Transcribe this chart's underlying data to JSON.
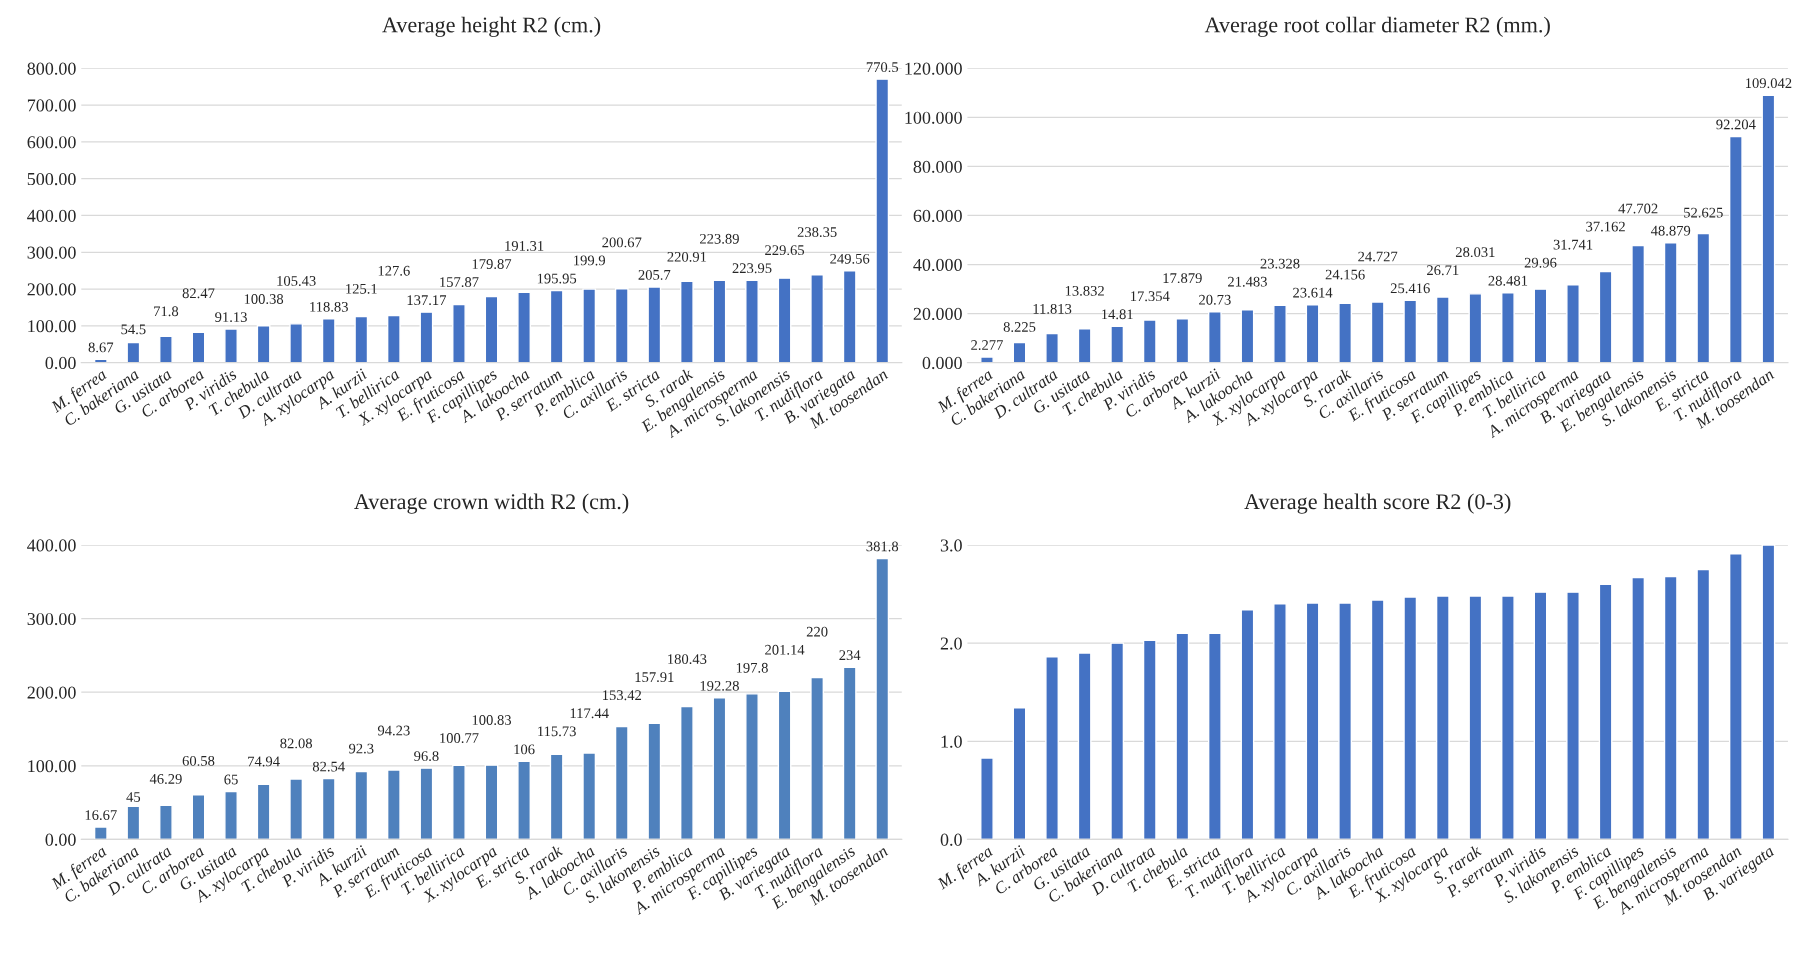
{
  "chart_data": [
    {
      "type": "bar",
      "title": "Average height R2 (cm.)",
      "color": "#4472c4",
      "data_labels": true,
      "grid": "y",
      "categories": [
        "M. ferrea",
        "C. bakeriana",
        "G. usitata",
        "C. arborea",
        "P. viridis",
        "T. chebula",
        "D. cultrata",
        "A. xylocarpa",
        "A. kurzii",
        "T. bellirica",
        "X. xylocarpa",
        "E. fruticosa",
        "F. capillipes",
        "A. lakoocha",
        "P. serratum",
        "P. emblica",
        "C. axillaris",
        "E. stricta",
        "S. rarak",
        "E. bengalensis",
        "A. microsperma",
        "S. lakonensis",
        "T. nudiflora",
        "B. variegata",
        "M. toosendan"
      ],
      "values": [
        8.67,
        54.5,
        71.8,
        82.47,
        91.13,
        100.38,
        105.43,
        118.83,
        125.1,
        127.6,
        137.17,
        157.87,
        179.87,
        191.31,
        195.95,
        199.9,
        200.67,
        205.7,
        220.91,
        223.89,
        223.95,
        229.65,
        238.35,
        249.56,
        770.5
      ],
      "ylim": [
        0,
        800
      ],
      "yticks": [
        {
          "value": 0,
          "label": "0.00"
        },
        {
          "value": 100,
          "label": "100.00"
        },
        {
          "value": 200,
          "label": "200.00"
        },
        {
          "value": 300,
          "label": "300.00"
        },
        {
          "value": 400,
          "label": "400.00"
        },
        {
          "value": 500,
          "label": "500.00"
        },
        {
          "value": 600,
          "label": "600.00"
        },
        {
          "value": 700,
          "label": "700.00"
        },
        {
          "value": 800,
          "label": "800.00"
        }
      ]
    },
    {
      "type": "bar",
      "title": "Average root collar diameter R2 (mm.)",
      "color": "#4472c4",
      "data_labels": true,
      "grid": "y",
      "categories": [
        "M. ferrea",
        "C. bakeriana",
        "D. cultrata",
        "G. usitata",
        "T. chebula",
        "P. viridis",
        "C. arborea",
        "A. kurzii",
        "A. lakoocha",
        "X. xylocarpa",
        "A. xylocarpa",
        "S. rarak",
        "C. axillaris",
        "E. fruticosa",
        "P. serratum",
        "F. capillipes",
        "P. emblica",
        "T. bellirica",
        "A. microsperma",
        "B. variegata",
        "E. bengalensis",
        "S. lakonensis",
        "E. stricta",
        "T. nudiflora",
        "M. toosendan"
      ],
      "values": [
        2.277,
        8.225,
        11.813,
        13.832,
        14.81,
        17.354,
        17.879,
        20.73,
        21.483,
        23.328,
        23.614,
        24.156,
        24.727,
        25.416,
        26.71,
        28.031,
        28.481,
        29.96,
        31.741,
        37.162,
        47.702,
        48.879,
        52.625,
        92.204,
        109.042
      ],
      "ylim": [
        0,
        120
      ],
      "yticks": [
        {
          "value": 0,
          "label": "0.000"
        },
        {
          "value": 20,
          "label": "20.000"
        },
        {
          "value": 40,
          "label": "40.000"
        },
        {
          "value": 60,
          "label": "60.000"
        },
        {
          "value": 80,
          "label": "80.000"
        },
        {
          "value": 100,
          "label": "100.000"
        },
        {
          "value": 120,
          "label": "120.000"
        }
      ]
    },
    {
      "type": "bar",
      "title": "Average crown width R2 (cm.)",
      "color": "#4f81bd",
      "data_labels": true,
      "grid": "y",
      "categories": [
        "M. ferrea",
        "C. bakeriana",
        "D. cultrata",
        "C. arborea",
        "G. usitata",
        "A. xylocarpa",
        "T. chebula",
        "P. viridis",
        "A. kurzii",
        "P. serratum",
        "E. fruticosa",
        "T. bellirica",
        "X. xylocarpa",
        "E. stricta",
        "S. rarak",
        "A. lakoocha",
        "C. axillaris",
        "S. lakonensis",
        "P. emblica",
        "A. microsperma",
        "F. capillipes",
        "B. variegata",
        "T. nudiflora",
        "E. bengalensis",
        "M. toosendan"
      ],
      "values": [
        16.67,
        45,
        46.29,
        60.58,
        65,
        74.94,
        82.08,
        82.54,
        92.3,
        94.23,
        96.8,
        100.77,
        100.83,
        106,
        115.73,
        117.44,
        153.42,
        157.91,
        180.43,
        192.28,
        197.8,
        201.14,
        220,
        234,
        381.8
      ],
      "ylim": [
        0,
        400
      ],
      "yticks": [
        {
          "value": 0,
          "label": "0.00"
        },
        {
          "value": 100,
          "label": "100.00"
        },
        {
          "value": 200,
          "label": "200.00"
        },
        {
          "value": 300,
          "label": "300.00"
        },
        {
          "value": 400,
          "label": "400.00"
        }
      ]
    },
    {
      "type": "bar",
      "title": "Average health score R2 (0-3)",
      "color": "#4472c4",
      "grid": "y",
      "categories": [
        "M. ferrea",
        "A. kurzii",
        "C. arborea",
        "G. usitata",
        "C. bakeriana",
        "D. cultrata",
        "T. chebula",
        "E. stricta",
        "T. nudiflora",
        "T. bellirica",
        "A. xylocarpa",
        "C. axillaris",
        "A. lakoocha",
        "E. fruticosa",
        "X. xylocarpa",
        "S. rarak",
        "P. serratum",
        "P. viridis",
        "S. lakonensis",
        "P. emblica",
        "F. capillipes",
        "E. bengalensis",
        "A. microsperma",
        "M. toosendan",
        "B. variegata"
      ],
      "values": [
        0.83,
        1.34,
        1.86,
        1.9,
        2.0,
        2.03,
        2.1,
        2.1,
        2.34,
        2.4,
        2.41,
        2.41,
        2.44,
        2.47,
        2.48,
        2.48,
        2.48,
        2.52,
        2.52,
        2.6,
        2.67,
        2.68,
        2.75,
        2.91,
        3.0
      ],
      "ylim": [
        0,
        3
      ],
      "yticks": [
        {
          "value": 0,
          "label": "0.0"
        },
        {
          "value": 1,
          "label": "1.0"
        },
        {
          "value": 2,
          "label": "2.0"
        },
        {
          "value": 3,
          "label": "3.0"
        }
      ]
    }
  ]
}
